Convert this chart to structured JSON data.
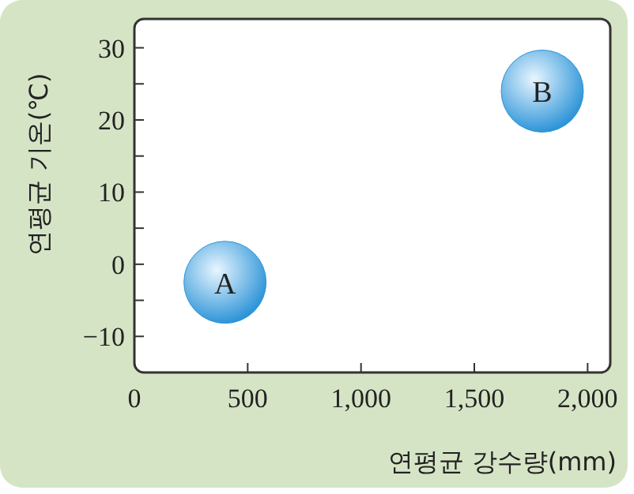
{
  "chart_data": {
    "type": "scatter",
    "xlabel": "연평균 강수량(mm)",
    "ylabel": "연평균 기온(℃)",
    "x": [
      400,
      1800
    ],
    "values": [
      -2.5,
      24
    ],
    "color": "#2f95d8",
    "marker": "circle",
    "xlim": [
      0,
      2100
    ],
    "ylim": [
      -15,
      34
    ],
    "xticks": [
      0,
      500,
      {
        "value": 1000,
        "label": "1,000"
      },
      {
        "value": 1500,
        "label": "1,500"
      },
      {
        "value": 2000,
        "label": "2,000"
      }
    ],
    "yticks": [
      {
        "value": -10,
        "label": "−10"
      },
      {
        "value": -5,
        "label": null
      },
      0,
      {
        "value": 5,
        "label": null
      },
      10,
      {
        "value": 15,
        "label": null
      },
      20,
      {
        "value": 25,
        "label": null
      },
      30
    ],
    "annotations": [
      {
        "text": "A",
        "x": 400,
        "y": -2.5
      },
      {
        "text": "B",
        "x": 1800,
        "y": 24
      }
    ],
    "grid": false
  }
}
